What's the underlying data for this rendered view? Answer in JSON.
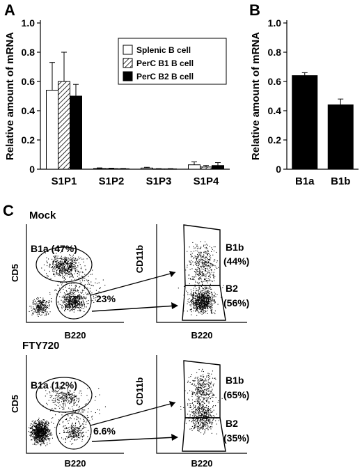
{
  "panels": {
    "A": "A",
    "B": "B",
    "C": "C"
  },
  "chart_data": [
    {
      "type": "bar",
      "panel": "A",
      "ylabel": "Relative amount of mRNA",
      "ylim": [
        0,
        1.0
      ],
      "yticks": [
        "0",
        "0.2",
        "0.4",
        "0.6",
        "0.8",
        "1.0"
      ],
      "categories": [
        "S1P1",
        "S1P2",
        "S1P3",
        "S1P4"
      ],
      "legend_position": "upper-right",
      "series": [
        {
          "name": "Splenic B cell",
          "pattern": "open",
          "color": "#ffffff",
          "values": [
            0.54,
            0.005,
            0.008,
            0.03
          ],
          "errors": [
            0.19,
            0.004,
            0.005,
            0.02
          ]
        },
        {
          "name": "PerC B1 B cell",
          "pattern": "hatched",
          "color": "#ffffff",
          "values": [
            0.6,
            0.004,
            0.002,
            0.015
          ],
          "errors": [
            0.2,
            0.003,
            0.002,
            0.01
          ]
        },
        {
          "name": "PerC B2 B cell",
          "pattern": "solid",
          "color": "#000000",
          "values": [
            0.5,
            0.003,
            0.002,
            0.025
          ],
          "errors": [
            0.08,
            0.002,
            0.002,
            0.02
          ]
        }
      ]
    },
    {
      "type": "bar",
      "panel": "B",
      "ylabel": "Relative amount of mRNA",
      "ylim": [
        0,
        1.0
      ],
      "yticks": [
        "0",
        "0.2",
        "0.4",
        "0.6",
        "0.8",
        "1.0"
      ],
      "categories": [
        "B1a",
        "B1b"
      ],
      "series": [
        {
          "name": "",
          "color": "#000000",
          "values": [
            0.64,
            0.44
          ],
          "errors": [
            0.02,
            0.04
          ]
        }
      ]
    }
  ],
  "flow": {
    "mock": {
      "title": "Mock",
      "left": {
        "ylabel": "CD5",
        "xlabel": "B220",
        "b1a_label": "B1a (47%)",
        "gate_pct": "23%"
      },
      "right": {
        "ylabel": "CD11b",
        "xlabel": "B220",
        "b1b_label": "B1b",
        "b1b_pct": "(44%)",
        "b2_label": "B2",
        "b2_pct": "(56%)"
      }
    },
    "fty720": {
      "title": "FTY720",
      "left": {
        "ylabel": "CD5",
        "xlabel": "B220",
        "b1a_label": "B1a (12%)",
        "gate_pct": "6.6%"
      },
      "right": {
        "ylabel": "CD11b",
        "xlabel": "B220",
        "b1b_label": "B1b",
        "b1b_pct": "(65%)",
        "b2_label": "B2",
        "b2_pct": "(35%)"
      }
    }
  }
}
